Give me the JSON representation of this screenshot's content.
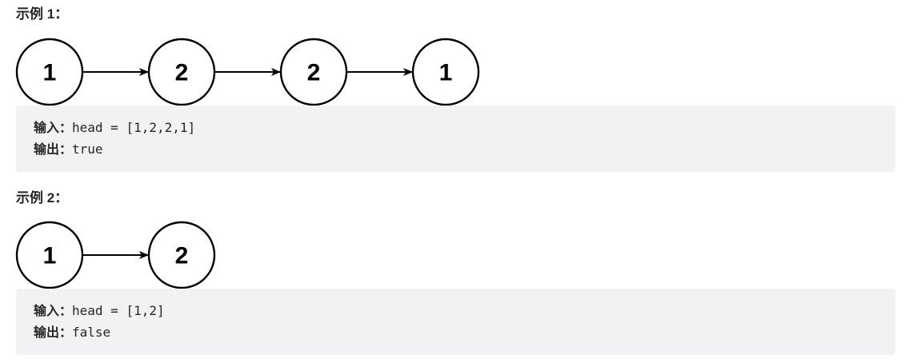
{
  "examples": [
    {
      "heading": "示例 1：",
      "nodes": [
        "1",
        "2",
        "2",
        "1"
      ],
      "input_label": "输入：",
      "input_value": "head = [1,2,2,1]",
      "output_label": "输出：",
      "output_value": "true"
    },
    {
      "heading": "示例 2：",
      "nodes": [
        "1",
        "2"
      ],
      "input_label": "输入：",
      "input_value": "head = [1,2]",
      "output_label": "输出：",
      "output_value": "false"
    }
  ]
}
